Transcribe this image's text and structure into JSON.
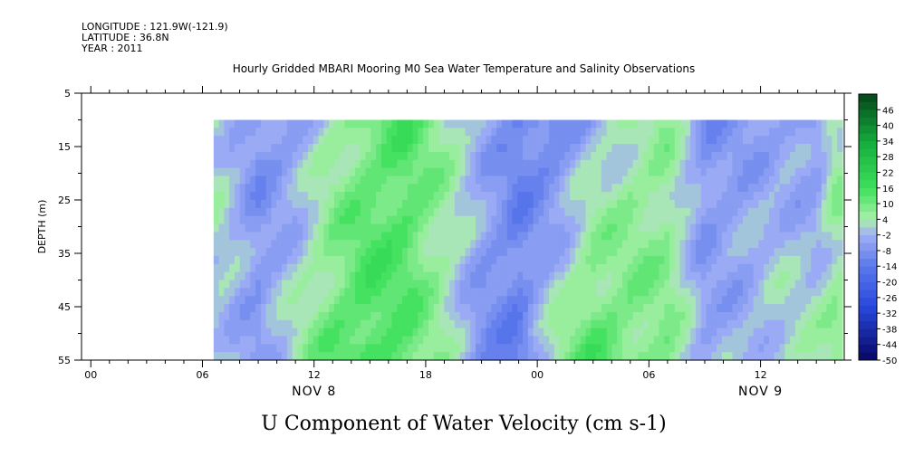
{
  "header": {
    "longitude": "LONGITUDE : 121.9W(-121.9)",
    "latitude": "LATITUDE : 36.8N",
    "year": "YEAR : 2011"
  },
  "chart_data": {
    "type": "heatmap",
    "title": "Hourly Gridded MBARI Mooring M0 Sea Water Temperature and Salinity Observations",
    "xlabel": "",
    "ylabel": "DEPTH (m)",
    "bottom_title": "U Component of Water Velocity (cm s-1)",
    "x_ticks": [
      "00",
      "06",
      "12",
      "18",
      "00",
      "06",
      "12"
    ],
    "x_date_labels": [
      "NOV  8",
      "NOV  9"
    ],
    "xlim_hours": [
      -0.5,
      40.5
    ],
    "data_start_hour": 6.6,
    "y_ticks": [
      "5",
      "15",
      "25",
      "35",
      "45",
      "55"
    ],
    "ylim": [
      5,
      55
    ],
    "data_depth_range": [
      10,
      55
    ],
    "colorbar": {
      "labels": [
        "46",
        "40",
        "34",
        "28",
        "22",
        "16",
        "10",
        "4",
        "-2",
        "-8",
        "-14",
        "-20",
        "-26",
        "-32",
        "-38",
        "-44",
        "-50"
      ],
      "range": [
        -50,
        52
      ],
      "step": 3
    },
    "field_description_hours": [
      7,
      9,
      11,
      13,
      15,
      17,
      19,
      21,
      23,
      25,
      27,
      29,
      31,
      33,
      35,
      37,
      39,
      40
    ],
    "field_surface_values": [
      2,
      -8,
      -6,
      4,
      10,
      14,
      6,
      -2,
      -10,
      -12,
      -2,
      4,
      6,
      -8,
      -6,
      -4,
      -8,
      4
    ],
    "field_deep_values": [
      0,
      -6,
      4,
      12,
      16,
      12,
      4,
      -8,
      -12,
      6,
      14,
      10,
      8,
      -4,
      -2,
      2,
      4,
      6
    ]
  }
}
